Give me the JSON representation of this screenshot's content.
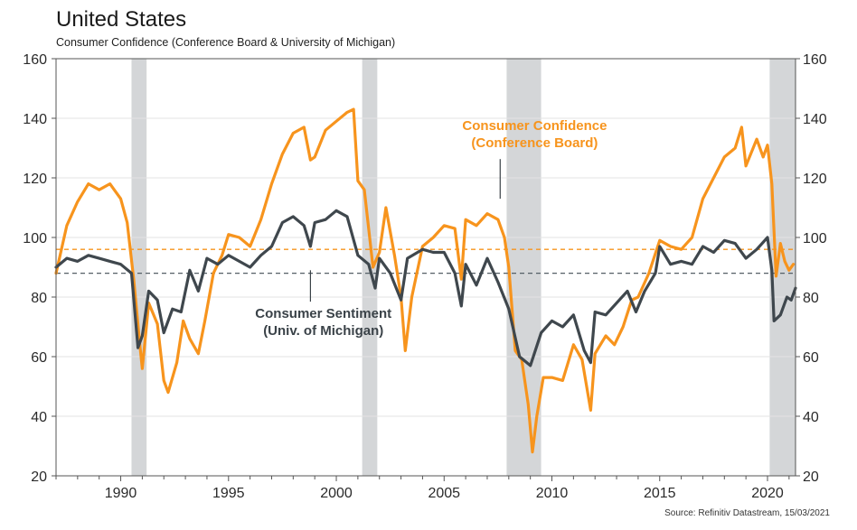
{
  "header": {
    "title": "United States",
    "subtitle": "Consumer Confidence (Conference Board & University of Michigan)"
  },
  "footer": {
    "source": "Source: Refinitiv Datastream, 15/03/2021"
  },
  "chart_data": {
    "type": "line",
    "title": "United States",
    "subtitle": "Consumer Confidence (Conference Board & University of Michigan)",
    "xlim": [
      1987,
      2021.3
    ],
    "ylim": [
      20,
      160
    ],
    "x_ticks": [
      1990,
      1995,
      2000,
      2005,
      2010,
      2015,
      2020
    ],
    "y_ticks": [
      20,
      40,
      60,
      80,
      100,
      120,
      140,
      160
    ],
    "y_ticks_right": [
      20,
      40,
      60,
      80,
      100,
      120,
      140,
      160
    ],
    "grid": "horizontal",
    "recessions": [
      [
        1990.5,
        1991.2
      ],
      [
        2001.2,
        2001.9
      ],
      [
        2007.9,
        2009.5
      ],
      [
        2020.1,
        2021.3
      ]
    ],
    "reference_lines": [
      {
        "series": "Consumer Confidence (Conference Board)",
        "value": 96,
        "color": "#f7941d",
        "style": "dashed"
      },
      {
        "series": "Consumer Sentiment (Univ. of Michigan)",
        "value": 88,
        "color": "#555f66",
        "style": "dashed"
      }
    ],
    "annotations": [
      {
        "text": [
          "Consumer Confidence",
          "(Conference Board)"
        ],
        "color": "#f7941d",
        "x": 2009.2,
        "y": 136,
        "pointer_to": [
          2007.6,
          113
        ]
      },
      {
        "text": [
          "Consumer Sentiment",
          "(Univ. of Michigan)"
        ],
        "color": "#3a4248",
        "x": 1999.4,
        "y": 73,
        "pointer_to": [
          1998.8,
          89
        ]
      }
    ],
    "series": [
      {
        "name": "Consumer Confidence (Conference Board)",
        "color": "#f7941d",
        "points": [
          [
            1987.0,
            88
          ],
          [
            1987.5,
            104
          ],
          [
            1988.0,
            112
          ],
          [
            1988.5,
            118
          ],
          [
            1989.0,
            116
          ],
          [
            1989.5,
            118
          ],
          [
            1990.0,
            113
          ],
          [
            1990.3,
            105
          ],
          [
            1990.6,
            86
          ],
          [
            1990.9,
            63
          ],
          [
            1991.0,
            56
          ],
          [
            1991.3,
            78
          ],
          [
            1991.7,
            71
          ],
          [
            1992.0,
            52
          ],
          [
            1992.2,
            48
          ],
          [
            1992.6,
            58
          ],
          [
            1992.9,
            72
          ],
          [
            1993.2,
            66
          ],
          [
            1993.6,
            61
          ],
          [
            1993.9,
            72
          ],
          [
            1994.3,
            88
          ],
          [
            1994.7,
            94
          ],
          [
            1995.0,
            101
          ],
          [
            1995.5,
            100
          ],
          [
            1996.0,
            97
          ],
          [
            1996.5,
            106
          ],
          [
            1997.0,
            118
          ],
          [
            1997.5,
            128
          ],
          [
            1998.0,
            135
          ],
          [
            1998.5,
            137
          ],
          [
            1998.8,
            126
          ],
          [
            1999.0,
            127
          ],
          [
            1999.5,
            136
          ],
          [
            2000.0,
            139
          ],
          [
            2000.5,
            142
          ],
          [
            2000.8,
            143
          ],
          [
            2001.0,
            119
          ],
          [
            2001.3,
            116
          ],
          [
            2001.7,
            90
          ],
          [
            2002.0,
            95
          ],
          [
            2002.3,
            110
          ],
          [
            2002.7,
            94
          ],
          [
            2003.0,
            80
          ],
          [
            2003.2,
            62
          ],
          [
            2003.5,
            80
          ],
          [
            2004.0,
            97
          ],
          [
            2004.5,
            100
          ],
          [
            2005.0,
            104
          ],
          [
            2005.5,
            103
          ],
          [
            2005.8,
            86
          ],
          [
            2006.0,
            106
          ],
          [
            2006.5,
            104
          ],
          [
            2007.0,
            108
          ],
          [
            2007.5,
            106
          ],
          [
            2007.8,
            100
          ],
          [
            2008.0,
            90
          ],
          [
            2008.3,
            62
          ],
          [
            2008.6,
            59
          ],
          [
            2008.9,
            44
          ],
          [
            2009.1,
            28
          ],
          [
            2009.3,
            40
          ],
          [
            2009.6,
            53
          ],
          [
            2010.0,
            53
          ],
          [
            2010.5,
            52
          ],
          [
            2011.0,
            64
          ],
          [
            2011.4,
            59
          ],
          [
            2011.8,
            42
          ],
          [
            2012.0,
            61
          ],
          [
            2012.5,
            67
          ],
          [
            2012.9,
            64
          ],
          [
            2013.3,
            70
          ],
          [
            2013.7,
            79
          ],
          [
            2014.0,
            80
          ],
          [
            2014.5,
            88
          ],
          [
            2015.0,
            99
          ],
          [
            2015.5,
            97
          ],
          [
            2016.0,
            96
          ],
          [
            2016.5,
            100
          ],
          [
            2017.0,
            113
          ],
          [
            2017.5,
            120
          ],
          [
            2018.0,
            127
          ],
          [
            2018.5,
            130
          ],
          [
            2018.8,
            137
          ],
          [
            2019.0,
            124
          ],
          [
            2019.5,
            133
          ],
          [
            2019.8,
            127
          ],
          [
            2020.0,
            131
          ],
          [
            2020.2,
            118
          ],
          [
            2020.4,
            87
          ],
          [
            2020.6,
            98
          ],
          [
            2020.8,
            92
          ],
          [
            2021.0,
            89
          ],
          [
            2021.2,
            91
          ]
        ]
      },
      {
        "name": "Consumer Sentiment (Univ. of Michigan)",
        "color": "#3f474d",
        "points": [
          [
            1987.0,
            90
          ],
          [
            1987.5,
            93
          ],
          [
            1988.0,
            92
          ],
          [
            1988.5,
            94
          ],
          [
            1989.0,
            93
          ],
          [
            1989.5,
            92
          ],
          [
            1990.0,
            91
          ],
          [
            1990.5,
            88
          ],
          [
            1990.8,
            63
          ],
          [
            1991.0,
            67
          ],
          [
            1991.3,
            82
          ],
          [
            1991.7,
            79
          ],
          [
            1992.0,
            68
          ],
          [
            1992.4,
            76
          ],
          [
            1992.8,
            75
          ],
          [
            1993.2,
            89
          ],
          [
            1993.6,
            82
          ],
          [
            1994.0,
            93
          ],
          [
            1994.5,
            91
          ],
          [
            1995.0,
            94
          ],
          [
            1995.5,
            92
          ],
          [
            1996.0,
            90
          ],
          [
            1996.5,
            94
          ],
          [
            1997.0,
            97
          ],
          [
            1997.5,
            105
          ],
          [
            1998.0,
            107
          ],
          [
            1998.5,
            104
          ],
          [
            1998.8,
            97
          ],
          [
            1999.0,
            105
          ],
          [
            1999.5,
            106
          ],
          [
            2000.0,
            109
          ],
          [
            2000.5,
            107
          ],
          [
            2001.0,
            94
          ],
          [
            2001.5,
            91
          ],
          [
            2001.8,
            83
          ],
          [
            2002.0,
            93
          ],
          [
            2002.5,
            88
          ],
          [
            2003.0,
            79
          ],
          [
            2003.3,
            93
          ],
          [
            2004.0,
            96
          ],
          [
            2004.5,
            95
          ],
          [
            2005.0,
            95
          ],
          [
            2005.5,
            88
          ],
          [
            2005.8,
            77
          ],
          [
            2006.0,
            91
          ],
          [
            2006.5,
            84
          ],
          [
            2007.0,
            93
          ],
          [
            2007.5,
            85
          ],
          [
            2008.0,
            76
          ],
          [
            2008.5,
            60
          ],
          [
            2009.0,
            57
          ],
          [
            2009.5,
            68
          ],
          [
            2010.0,
            72
          ],
          [
            2010.5,
            70
          ],
          [
            2011.0,
            74
          ],
          [
            2011.5,
            62
          ],
          [
            2011.8,
            58
          ],
          [
            2012.0,
            75
          ],
          [
            2012.5,
            74
          ],
          [
            2013.0,
            78
          ],
          [
            2013.5,
            82
          ],
          [
            2013.9,
            75
          ],
          [
            2014.3,
            82
          ],
          [
            2014.8,
            88
          ],
          [
            2015.0,
            97
          ],
          [
            2015.5,
            91
          ],
          [
            2016.0,
            92
          ],
          [
            2016.5,
            91
          ],
          [
            2017.0,
            97
          ],
          [
            2017.5,
            95
          ],
          [
            2018.0,
            99
          ],
          [
            2018.5,
            98
          ],
          [
            2019.0,
            93
          ],
          [
            2019.5,
            96
          ],
          [
            2020.0,
            100
          ],
          [
            2020.2,
            89
          ],
          [
            2020.3,
            72
          ],
          [
            2020.6,
            74
          ],
          [
            2020.9,
            80
          ],
          [
            2021.1,
            79
          ],
          [
            2021.3,
            83
          ]
        ]
      }
    ]
  }
}
